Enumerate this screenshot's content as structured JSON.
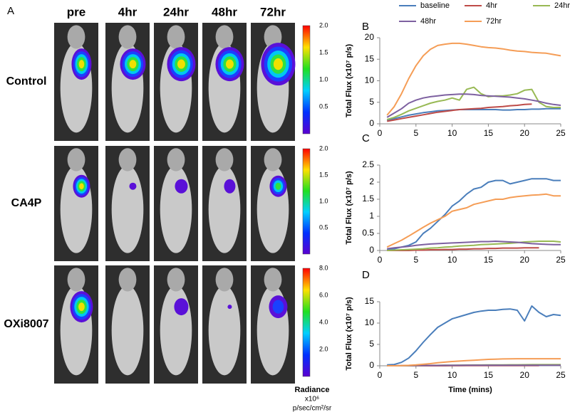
{
  "panel_a": {
    "label": "A",
    "columns": [
      "pre",
      "4hr",
      "24hr",
      "48hr",
      "72hr"
    ],
    "rows": [
      {
        "name": "Control",
        "scale": [
          "2.0",
          "1.5",
          "1.0",
          "0.5"
        ]
      },
      {
        "name": "CA4P",
        "scale": [
          "2.0",
          "1.5",
          "1.0",
          "0.5"
        ]
      },
      {
        "name": "OXi8007",
        "scale": [
          "8.0",
          "6.0",
          "4.0",
          "2.0"
        ]
      }
    ],
    "scale_title": [
      "Radiance",
      "x10⁶",
      "p/sec/cm²/sr"
    ]
  },
  "chart_data": [
    {
      "type": "line",
      "panel": "B",
      "ylabel": "Total Flux (x10⁷ p/s)",
      "legend": true,
      "x": [
        1,
        2,
        3,
        4,
        5,
        6,
        7,
        8,
        9,
        10,
        11,
        12,
        13,
        14,
        15,
        16,
        17,
        18,
        19,
        20,
        21,
        22,
        23,
        24,
        25
      ],
      "xlim": [
        0,
        25
      ],
      "xticks": [
        0,
        5,
        10,
        15,
        20,
        25
      ],
      "ylim": [
        0,
        20
      ],
      "yticks": [
        0,
        5,
        10,
        15,
        20
      ],
      "series": [
        {
          "name": "baseline",
          "color": "#4a7ebb",
          "values": [
            0.8,
            1.2,
            1.6,
            2,
            2.3,
            2.6,
            2.8,
            3,
            3.1,
            3.2,
            3.3,
            3.3,
            3.3,
            3.3,
            3.3,
            3.3,
            3.2,
            3.2,
            3.3,
            3.3,
            3.4,
            3.4,
            3.5,
            3.5,
            3.5
          ]
        },
        {
          "name": "4hr",
          "color": "#be4b48",
          "values": [
            0.6,
            0.9,
            1.2,
            1.5,
            1.8,
            2.1,
            2.4,
            2.7,
            2.9,
            3.1,
            3.3,
            3.4,
            3.5,
            3.6,
            3.8,
            3.9,
            4.0,
            4.2,
            4.3,
            4.5,
            4.6,
            null,
            null,
            null,
            null
          ]
        },
        {
          "name": "24hr",
          "color": "#98b954",
          "values": [
            1,
            1.5,
            2.2,
            3,
            3.6,
            4.2,
            4.8,
            5.2,
            5.5,
            6,
            5.5,
            8,
            8.5,
            7,
            6.3,
            6.5,
            6.5,
            6.7,
            7,
            7.8,
            8,
            5,
            4,
            3.8,
            3.8
          ]
        },
        {
          "name": "48hr",
          "color": "#7d60a0",
          "values": [
            1.5,
            2.5,
            3.5,
            4.8,
            5.5,
            6,
            6.3,
            6.5,
            6.7,
            6.8,
            6.9,
            6.9,
            6.8,
            6.6,
            6.5,
            6.4,
            6.3,
            6.2,
            6,
            5.8,
            5.5,
            5.2,
            4.8,
            4.5,
            4.3
          ]
        },
        {
          "name": "72hr",
          "color": "#f59d56",
          "values": [
            2,
            4,
            7,
            10.5,
            13.5,
            15.8,
            17.3,
            18.2,
            18.5,
            18.7,
            18.7,
            18.5,
            18.2,
            17.9,
            17.7,
            17.6,
            17.4,
            17.1,
            16.9,
            16.8,
            16.6,
            16.5,
            16.4,
            16.1,
            15.8
          ]
        }
      ]
    },
    {
      "type": "line",
      "panel": "C",
      "ylabel": "Total Flux (x10⁷ p/s)",
      "legend": false,
      "x": [
        1,
        2,
        3,
        4,
        5,
        6,
        7,
        8,
        9,
        10,
        11,
        12,
        13,
        14,
        15,
        16,
        17,
        18,
        19,
        20,
        21,
        22,
        23,
        24,
        25
      ],
      "xlim": [
        0,
        25
      ],
      "xticks": [
        0,
        5,
        10,
        15,
        20,
        25
      ],
      "ylim": [
        0,
        2.5
      ],
      "yticks": [
        0,
        0.5,
        1,
        1.5,
        2,
        2.5
      ],
      "series": [
        {
          "color": "#4a7ebb",
          "values": [
            0.02,
            0.05,
            0.1,
            0.15,
            0.25,
            0.5,
            0.65,
            0.85,
            1.05,
            1.3,
            1.45,
            1.65,
            1.8,
            1.85,
            2,
            2.05,
            2.05,
            1.95,
            2,
            2.05,
            2.1,
            2.1,
            2.1,
            2.05,
            2.05
          ]
        },
        {
          "color": "#be4b48",
          "values": [
            0,
            0,
            0,
            0,
            0.01,
            0.01,
            0.02,
            0.02,
            0.03,
            0.03,
            0.04,
            0.04,
            0.05,
            0.05,
            0.06,
            0.06,
            0.07,
            0.07,
            0.07,
            0.08,
            0.08,
            0.08,
            null,
            null,
            null
          ]
        },
        {
          "color": "#98b954",
          "values": [
            0,
            0.01,
            0.02,
            0.03,
            0.04,
            0.05,
            0.07,
            0.08,
            0.1,
            0.11,
            0.13,
            0.14,
            0.15,
            0.17,
            0.18,
            0.19,
            0.2,
            0.21,
            0.23,
            0.25,
            0.26,
            0.27,
            0.27,
            0.27,
            0.25
          ]
        },
        {
          "color": "#7d60a0",
          "values": [
            0.05,
            0.08,
            0.1,
            0.12,
            0.15,
            0.17,
            0.19,
            0.2,
            0.21,
            0.22,
            0.23,
            0.24,
            0.25,
            0.26,
            0.26,
            0.27,
            0.26,
            0.25,
            0.24,
            0.22,
            0.2,
            0.19,
            0.18,
            0.17,
            0.17
          ]
        },
        {
          "color": "#f59d56",
          "values": [
            0.1,
            0.2,
            0.3,
            0.42,
            0.55,
            0.68,
            0.8,
            0.9,
            1,
            1.15,
            1.2,
            1.25,
            1.35,
            1.4,
            1.45,
            1.5,
            1.5,
            1.55,
            1.58,
            1.6,
            1.62,
            1.63,
            1.65,
            1.6,
            1.6
          ]
        }
      ]
    },
    {
      "type": "line",
      "panel": "D",
      "ylabel": "Total Flux (x10⁷ p/s)",
      "xlabel": "Time (mins)",
      "legend": false,
      "x": [
        1,
        2,
        3,
        4,
        5,
        6,
        7,
        8,
        9,
        10,
        11,
        12,
        13,
        14,
        15,
        16,
        17,
        18,
        19,
        20,
        21,
        22,
        23,
        24,
        25
      ],
      "xlim": [
        0,
        25
      ],
      "xticks": [
        0,
        5,
        10,
        15,
        20,
        25
      ],
      "ylim": [
        0,
        15
      ],
      "yticks": [
        0,
        5,
        10,
        15
      ],
      "series": [
        {
          "color": "#4a7ebb",
          "values": [
            0.2,
            0.3,
            0.8,
            1.8,
            3.5,
            5.5,
            7.3,
            9,
            10,
            11,
            11.5,
            12,
            12.5,
            12.8,
            13,
            13,
            13.2,
            13.3,
            13,
            10.5,
            14,
            12.5,
            11.5,
            12,
            11.8
          ]
        },
        {
          "color": "#be4b48",
          "values": [
            0,
            0,
            0,
            0,
            0,
            0,
            0,
            0,
            0,
            0.02,
            0.02,
            0.03,
            0.03,
            0.04,
            0.04,
            0.05,
            0.05,
            0.05,
            0.05,
            0.05,
            0.05,
            0.05,
            null,
            null,
            null
          ]
        },
        {
          "color": "#98b954",
          "values": [
            0,
            0,
            0,
            0.02,
            0.04,
            0.06,
            0.08,
            0.1,
            0.12,
            0.14,
            0.15,
            0.16,
            0.18,
            0.19,
            0.2,
            0.21,
            0.22,
            0.23,
            0.24,
            0.25,
            0.26,
            0.27,
            0.27,
            0.27,
            0.27
          ]
        },
        {
          "color": "#7d60a0",
          "values": [
            0,
            0.02,
            0.04,
            0.05,
            0.06,
            0.07,
            0.08,
            0.09,
            0.1,
            0.1,
            0.1,
            0.11,
            0.11,
            0.12,
            0.12,
            0.12,
            0.12,
            0.12,
            0.12,
            0.12,
            0.12,
            0.12,
            0.12,
            0.12,
            0.12
          ]
        },
        {
          "color": "#f59d56",
          "values": [
            0,
            0,
            0.05,
            0.1,
            0.2,
            0.35,
            0.5,
            0.7,
            0.85,
            1,
            1.1,
            1.2,
            1.3,
            1.4,
            1.5,
            1.55,
            1.6,
            1.62,
            1.65,
            1.65,
            1.65,
            1.65,
            1.65,
            1.65,
            1.65
          ]
        }
      ]
    }
  ]
}
